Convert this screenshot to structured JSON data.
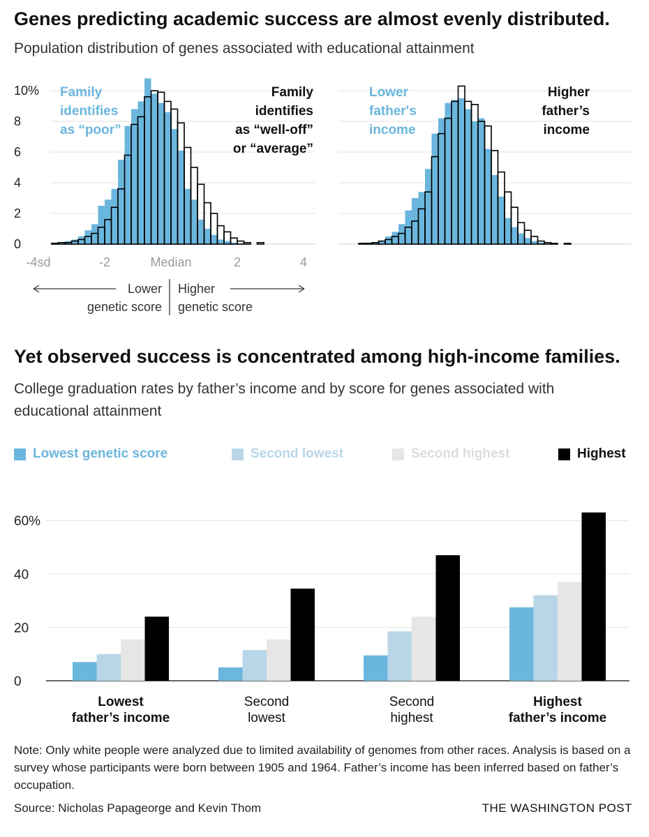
{
  "header": {
    "title": "Genes predicting academic success are almost evenly distributed.",
    "subtitle": "Population distribution of genes associated with educational attainment"
  },
  "second": {
    "title": "Yet observed success is concentrated among high-income families.",
    "subtitle": "College graduation rates by father’s income and by score for genes associated with educational attainment"
  },
  "colors": {
    "blue": "#6bb6dd",
    "lightblue": "#b9d6e8",
    "lightgray": "#e6e6e6",
    "black": "#000000",
    "grid": "#e2e2e2",
    "axisgray": "#9a9a9a"
  },
  "chart_data": [
    {
      "type": "histogram",
      "title": "Family identifies as “poor” vs. “well-off” or “average”",
      "y_ticks": [
        "10%",
        "8",
        "6",
        "4",
        "2",
        "0"
      ],
      "ylim": [
        0,
        11
      ],
      "x_ticks": [
        "-4sd",
        "-2",
        "Median",
        "2",
        "4"
      ],
      "x_range": [
        -4,
        4
      ],
      "bin_start": -3.6,
      "bin_width": 0.2,
      "series": [
        {
          "name": "Family identifies as “poor”",
          "style": "filled-blue",
          "values": [
            0.1,
            0.1,
            0.2,
            0.3,
            0.5,
            0.9,
            1.3,
            2.5,
            2.9,
            3.6,
            5.5,
            7.7,
            8.8,
            9.3,
            10.8,
            9.8,
            9.2,
            8.6,
            7.5,
            6.1,
            3.6,
            2.9,
            1.6,
            1.0,
            0.6,
            0.3,
            0.2,
            0.1,
            0.05,
            0.0,
            0.0,
            0.0
          ]
        },
        {
          "name": "Family identifies as “well-off” or “average”",
          "style": "outline-black",
          "values": [
            0.05,
            0.1,
            0.1,
            0.2,
            0.3,
            0.5,
            0.7,
            1.1,
            1.6,
            2.4,
            3.6,
            5.8,
            7.8,
            8.3,
            9.6,
            10.0,
            9.9,
            9.3,
            8.8,
            7.9,
            6.3,
            5.0,
            3.9,
            2.7,
            2.0,
            1.2,
            0.8,
            0.4,
            0.2,
            0.1,
            0.0,
            0.1
          ]
        }
      ],
      "labels": {
        "left": [
          "Family",
          "identifies",
          "as “poor”"
        ],
        "right": [
          "Family",
          "identifies",
          "as “well-off”",
          "or “average”"
        ]
      },
      "axis_note": {
        "lower": "Lower",
        "higher": "Higher",
        "lower2": "genetic score",
        "higher2": "genetic score"
      }
    },
    {
      "type": "histogram",
      "title": "Lower father's income vs. Higher father’s income",
      "ylim": [
        0,
        11
      ],
      "x_range": [
        -4,
        4
      ],
      "bin_start": -3.6,
      "bin_width": 0.2,
      "series": [
        {
          "name": "Lower father's income",
          "style": "filled-blue",
          "values": [
            0.05,
            0.1,
            0.1,
            0.2,
            0.5,
            0.8,
            1.3,
            2.2,
            3.0,
            3.4,
            4.9,
            7.2,
            8.2,
            9.2,
            9.4,
            9.5,
            8.8,
            8.0,
            8.2,
            6.2,
            4.5,
            3.1,
            1.7,
            1.1,
            0.7,
            0.4,
            0.2,
            0.1,
            0.05,
            0.0,
            0.0,
            0.0
          ]
        },
        {
          "name": "Higher father’s income",
          "style": "outline-black",
          "values": [
            0.05,
            0.05,
            0.1,
            0.2,
            0.3,
            0.5,
            0.7,
            1.1,
            1.5,
            2.3,
            3.4,
            5.7,
            7.2,
            8.2,
            9.3,
            10.3,
            9.3,
            9.1,
            8.0,
            7.7,
            6.1,
            4.7,
            3.4,
            2.4,
            1.4,
            0.9,
            0.5,
            0.2,
            0.1,
            0.05,
            0.0,
            0.05
          ]
        }
      ],
      "labels": {
        "left": [
          "Lower",
          "father's",
          "income"
        ],
        "right": [
          "Higher",
          "father’s",
          "income"
        ]
      }
    },
    {
      "type": "bar",
      "categories": [
        "Lowest father’s income",
        "Second lowest",
        "Second highest",
        "Highest father’s income"
      ],
      "category_lines": [
        [
          "Lowest",
          "father’s income"
        ],
        [
          "Second",
          "lowest"
        ],
        [
          "Second",
          "highest"
        ],
        [
          "Highest",
          "father’s income"
        ]
      ],
      "category_bold": [
        true,
        false,
        false,
        true
      ],
      "series": [
        {
          "name": "Lowest genetic score",
          "color": "#6bb6dd",
          "values": [
            7,
            5,
            9.5,
            27.5
          ]
        },
        {
          "name": "Second lowest",
          "color": "#b9d6e8",
          "values": [
            10,
            11.5,
            18.5,
            32
          ]
        },
        {
          "name": "Second highest",
          "color": "#e6e6e6",
          "values": [
            15.5,
            15.5,
            24,
            37
          ]
        },
        {
          "name": "Highest",
          "color": "#000000",
          "values": [
            24,
            34.5,
            47,
            63
          ]
        }
      ],
      "y_ticks": [
        "60%",
        "40",
        "20",
        "0"
      ],
      "y_tick_values": [
        60,
        40,
        20,
        0
      ],
      "ylim": [
        0,
        65
      ]
    }
  ],
  "legend": [
    {
      "label": "Lowest genetic score",
      "color": "#6bb6dd",
      "text_color": "#6bb6dd"
    },
    {
      "label": "Second lowest",
      "color": "#b9d6e8",
      "text_color": "#b9d6e8"
    },
    {
      "label": "Second highest",
      "color": "#e6e6e6",
      "text_color": "#dcdcdc"
    },
    {
      "label": "Highest",
      "color": "#000000",
      "text_color": "#111111"
    }
  ],
  "footer": {
    "note": "Note: Only white people were analyzed due to limited availability of genomes from other races. Analysis is based on a survey whose participants were born between 1905 and 1964. Father’s income has been inferred based on father’s occupation.",
    "source": "Source: Nicholas Papageorge and Kevin Thom",
    "brand": "THE WASHINGTON POST"
  }
}
